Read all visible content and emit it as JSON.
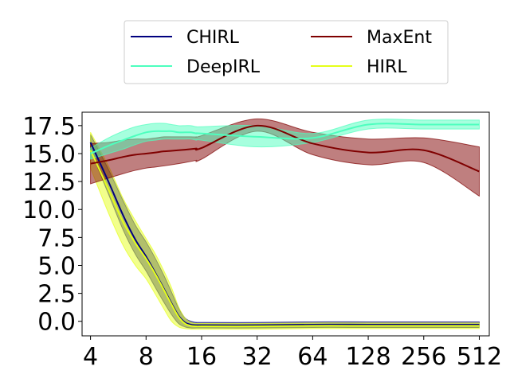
{
  "chart_data": {
    "type": "line",
    "title": "",
    "xlabel": "",
    "ylabel": "",
    "xscale": "log2",
    "x": [
      4,
      5,
      6,
      7,
      8,
      9,
      10,
      11,
      12,
      13,
      14,
      15,
      16,
      32,
      64,
      128,
      256,
      512
    ],
    "x_tick_labels": [
      "4",
      "8",
      "16",
      "32",
      "64",
      "128",
      "256",
      "512"
    ],
    "x_ticks": [
      4,
      8,
      16,
      32,
      64,
      128,
      256,
      512
    ],
    "y_ticks": [
      0,
      2.5,
      5,
      7.5,
      10,
      12.5,
      15,
      17.5
    ],
    "y_tick_labels": [
      "0.0",
      "2.5",
      "5.0",
      "7.5",
      "10.0",
      "12.5",
      "15.0",
      "17.5"
    ],
    "ylim": [
      -1.3,
      18.7
    ],
    "xlim": [
      3.6,
      580
    ],
    "legend": {
      "placement": "top-center",
      "columns": 2,
      "entries": [
        "CHIRL",
        "DeepIRL",
        "MaxEnt",
        "HIRL"
      ]
    },
    "series": [
      {
        "name": "CHIRL",
        "color": "#00007f",
        "values": [
          16.0,
          12.5,
          9.5,
          7.3,
          5.8,
          4.3,
          2.9,
          1.6,
          0.5,
          -0.1,
          -0.3,
          -0.35,
          -0.35,
          -0.35,
          -0.3,
          -0.3,
          -0.3,
          -0.3
        ],
        "lower": [
          15.3,
          11.4,
          8.2,
          6.0,
          4.5,
          3.0,
          1.7,
          0.6,
          -0.2,
          -0.5,
          -0.6,
          -0.6,
          -0.6,
          -0.6,
          -0.55,
          -0.55,
          -0.55,
          -0.55
        ],
        "upper": [
          16.7,
          13.6,
          10.8,
          8.6,
          7.1,
          5.6,
          4.1,
          2.6,
          1.2,
          0.3,
          0.0,
          -0.1,
          -0.1,
          -0.1,
          -0.05,
          -0.05,
          -0.05,
          -0.05
        ]
      },
      {
        "name": "DeepIRL",
        "color": "#4dffbe",
        "values": [
          15.0,
          15.7,
          16.2,
          16.6,
          16.9,
          17.0,
          17.0,
          17.0,
          16.9,
          16.9,
          16.9,
          16.8,
          16.8,
          16.5,
          16.4,
          17.6,
          17.6,
          17.6
        ],
        "lower": [
          14.5,
          15.0,
          15.4,
          15.8,
          16.1,
          16.2,
          16.3,
          16.3,
          16.3,
          16.3,
          16.3,
          16.2,
          16.2,
          15.6,
          16.0,
          17.2,
          17.2,
          17.2
        ],
        "upper": [
          15.5,
          16.4,
          17.0,
          17.4,
          17.6,
          17.7,
          17.7,
          17.6,
          17.5,
          17.5,
          17.5,
          17.4,
          17.4,
          17.5,
          16.8,
          18.0,
          18.0,
          18.0
        ]
      },
      {
        "name": "MaxEnt",
        "color": "#7f0000",
        "values": [
          14.1,
          14.4,
          14.7,
          14.9,
          15.0,
          15.1,
          15.2,
          15.25,
          15.3,
          15.35,
          15.4,
          15.45,
          15.5,
          17.5,
          15.9,
          15.1,
          15.3,
          13.4
        ],
        "lower": [
          12.3,
          12.8,
          13.2,
          13.5,
          13.7,
          13.8,
          13.9,
          14.0,
          14.1,
          14.2,
          14.3,
          14.4,
          14.5,
          17.0,
          14.9,
          14.0,
          14.2,
          11.2
        ],
        "upper": [
          15.9,
          16.0,
          16.2,
          16.3,
          16.3,
          16.4,
          16.5,
          16.5,
          16.5,
          16.5,
          16.5,
          16.5,
          16.6,
          18.1,
          16.9,
          16.3,
          16.4,
          15.6
        ]
      },
      {
        "name": "HIRL",
        "color": "#e5ff19",
        "values": [
          15.3,
          11.8,
          8.9,
          7.0,
          5.6,
          4.2,
          2.8,
          1.5,
          0.4,
          -0.2,
          -0.4,
          -0.45,
          -0.45,
          -0.45,
          -0.4,
          -0.4,
          -0.4,
          -0.4
        ],
        "lower": [
          13.7,
          9.7,
          6.8,
          5.0,
          3.8,
          2.4,
          1.1,
          0.0,
          -0.5,
          -0.65,
          -0.7,
          -0.7,
          -0.7,
          -0.7,
          -0.65,
          -0.65,
          -0.65,
          -0.65
        ],
        "upper": [
          16.9,
          13.9,
          11.0,
          9.0,
          7.4,
          6.0,
          4.5,
          3.0,
          1.3,
          0.3,
          -0.1,
          -0.2,
          -0.2,
          -0.2,
          -0.15,
          -0.15,
          -0.15,
          -0.15
        ]
      }
    ]
  }
}
